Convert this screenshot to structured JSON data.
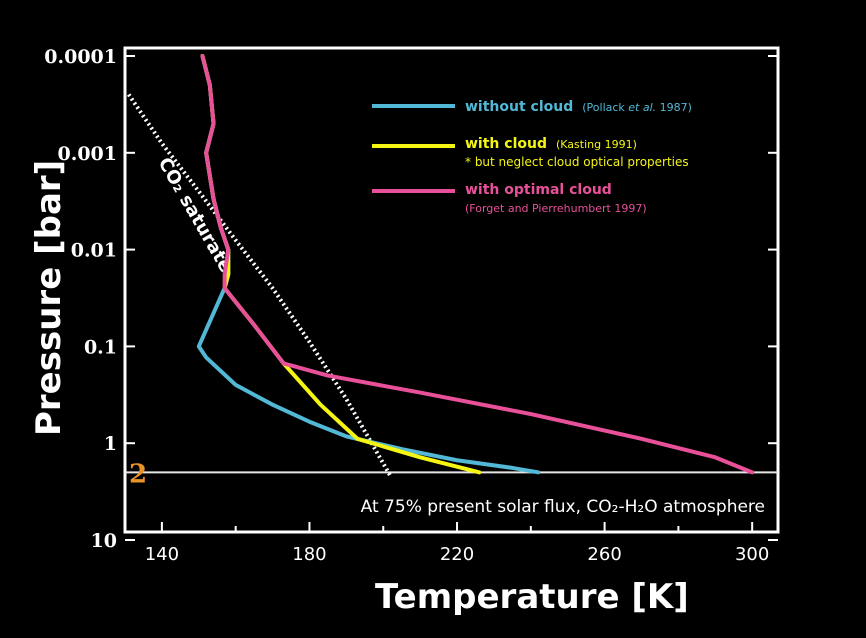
{
  "chart_data": {
    "type": "line",
    "ylabel": "Pressure [bar]",
    "xlabel": "Temperature [K]",
    "xlim": [
      130,
      307
    ],
    "ylim": [
      0.0001,
      10
    ],
    "y_scale": "log",
    "y_inverted": true,
    "x_ticks": [
      "140",
      "180",
      "220",
      "260",
      "300"
    ],
    "y_ticks": [
      "0.0001",
      "0.001",
      "0.01",
      "0.1",
      "1",
      "10"
    ],
    "surface_marker": {
      "label": "2",
      "pressure": 2
    },
    "annotation": "At 75% present solar flux, CO₂-H₂O atmosphere",
    "saturation_label": "CO₂ saturate",
    "legend_position": "top-right",
    "series": [
      {
        "name": "without cloud",
        "source_prefix": "(Pollack ",
        "source_italic": "et al.",
        "source_suffix": " 1987)",
        "color": "#52b8d6",
        "x": [
          151,
          153,
          154,
          152,
          154,
          156,
          158,
          158,
          157,
          150,
          152,
          160,
          170,
          180,
          190,
          205,
          220,
          235,
          242
        ],
        "y": [
          0.0001,
          0.0002,
          0.0005,
          0.001,
          0.003,
          0.006,
          0.01,
          0.018,
          0.025,
          0.1,
          0.13,
          0.25,
          0.4,
          0.6,
          0.85,
          1.15,
          1.5,
          1.8,
          2
        ]
      },
      {
        "name": "with cloud",
        "source_prefix": "(Kasting 1991)",
        "source_italic": "",
        "source_suffix": "",
        "note": "* but neglect cloud optical properties",
        "color": "#f5f514",
        "x": [
          151,
          153,
          154,
          152,
          154,
          156,
          158,
          158,
          157,
          165,
          173,
          183,
          193,
          210,
          226
        ],
        "y": [
          0.0001,
          0.0002,
          0.0005,
          0.001,
          0.003,
          0.006,
          0.01,
          0.018,
          0.025,
          0.06,
          0.15,
          0.4,
          0.9,
          1.4,
          2
        ]
      },
      {
        "name": "with optimal cloud",
        "source_prefix": "(Forget and Pierrehumbert 1997)",
        "source_italic": "",
        "source_suffix": "",
        "color": "#e8509a",
        "x": [
          151,
          153,
          154,
          152,
          154,
          156,
          158,
          157,
          157,
          165,
          173,
          185,
          210,
          240,
          270,
          290,
          300
        ],
        "y": [
          0.0001,
          0.0002,
          0.0005,
          0.001,
          0.003,
          0.006,
          0.01,
          0.018,
          0.025,
          0.06,
          0.15,
          0.2,
          0.3,
          0.5,
          0.9,
          1.4,
          2
        ]
      }
    ],
    "saturation_curve": {
      "x": [
        131,
        140,
        150,
        160,
        170,
        180,
        190,
        202
      ],
      "y": [
        0.00025,
        0.0008,
        0.0025,
        0.008,
        0.025,
        0.09,
        0.35,
        2.2
      ]
    }
  }
}
